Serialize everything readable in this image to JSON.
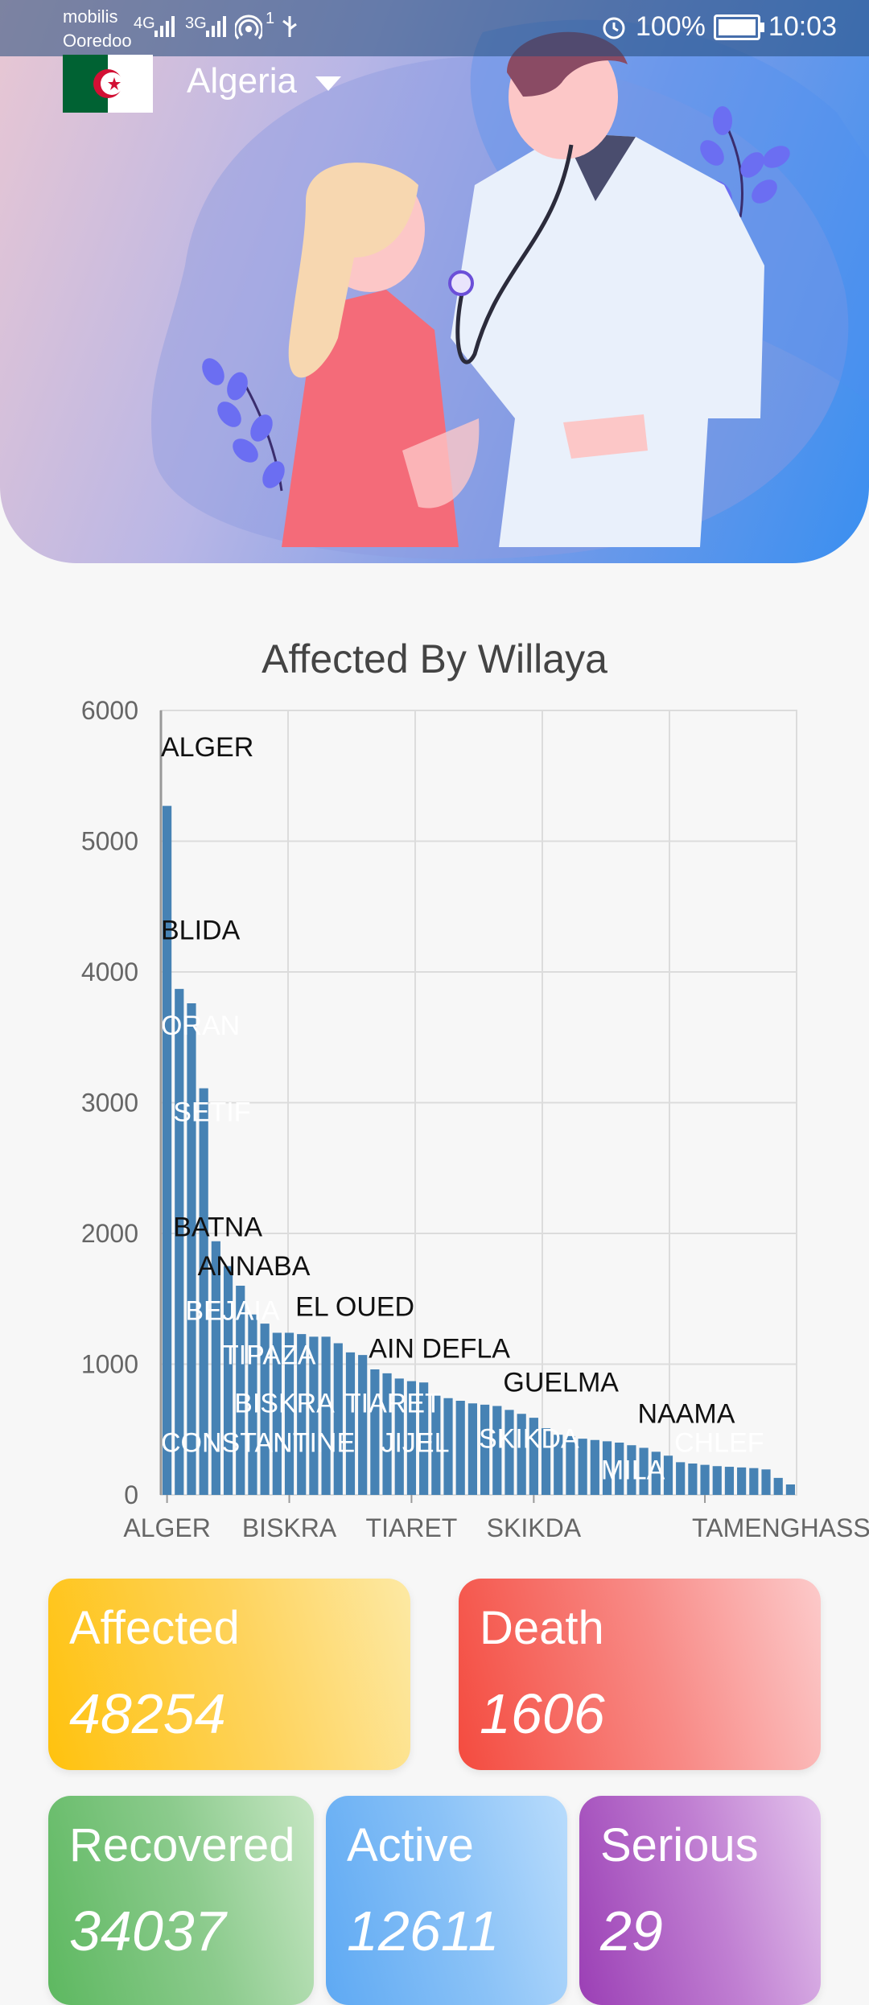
{
  "status_bar": {
    "carrier_1": "mobilis",
    "carrier_2": "Ooredoo",
    "signal_1": "4G",
    "signal_2": "3G",
    "hotspot_count": "1",
    "battery": "100%",
    "time": "10:03"
  },
  "header": {
    "country": "Algeria",
    "flag_colors": [
      "#006233",
      "#ffffff",
      "#d21034"
    ]
  },
  "chart_data": {
    "type": "bar",
    "title": "Affected By Willaya",
    "ylim": [
      0,
      6000
    ],
    "yticks": [
      0,
      1000,
      2000,
      3000,
      4000,
      5000,
      6000
    ],
    "xtick_labels": [
      "ALGER",
      "BISKRA",
      "TIARET",
      "SKIKDA",
      "TAMENGHASSET"
    ],
    "xtick_indices": [
      0,
      10,
      20,
      30,
      44
    ],
    "values": [
      5270,
      3870,
      3760,
      3110,
      1940,
      1750,
      1600,
      1380,
      1310,
      1240,
      1240,
      1230,
      1210,
      1210,
      1160,
      1090,
      1070,
      960,
      930,
      890,
      870,
      860,
      770,
      740,
      720,
      700,
      690,
      680,
      650,
      620,
      590,
      510,
      460,
      450,
      430,
      420,
      410,
      400,
      380,
      360,
      330,
      300,
      250,
      240,
      230,
      220,
      215,
      210,
      205,
      195,
      130,
      80
    ],
    "bar_labels": [
      {
        "index": 0,
        "text": "ALGER",
        "value": 5650,
        "color": "#111111"
      },
      {
        "index": 0,
        "text": "BLIDA",
        "value": 4250,
        "color": "#111111"
      },
      {
        "index": 0,
        "text": "ORAN",
        "value": 3520,
        "color": "#ffffff"
      },
      {
        "index": 1,
        "text": "SETIF",
        "value": 2860,
        "color": "#ffffff"
      },
      {
        "index": 1,
        "text": "BATNA",
        "value": 1980,
        "color": "#111111"
      },
      {
        "index": 3,
        "text": "ANNABA",
        "value": 1680,
        "color": "#111111"
      },
      {
        "index": 2,
        "text": "BEJAIA",
        "value": 1340,
        "color": "#ffffff"
      },
      {
        "index": 11,
        "text": "EL OUED",
        "value": 1370,
        "color": "#111111"
      },
      {
        "index": 5,
        "text": "TIPAZA",
        "value": 1000,
        "color": "#ffffff"
      },
      {
        "index": 17,
        "text": "AIN DEFLA",
        "value": 1050,
        "color": "#111111"
      },
      {
        "index": 6,
        "text": "BISKRA",
        "value": 630,
        "color": "#ffffff"
      },
      {
        "index": 15,
        "text": "TIARET",
        "value": 630,
        "color": "#ffffff"
      },
      {
        "index": 28,
        "text": "GUELMA",
        "value": 790,
        "color": "#111111"
      },
      {
        "index": 0,
        "text": "CONSTANTINE",
        "value": 330,
        "color": "#ffffff"
      },
      {
        "index": 18,
        "text": "JIJEL",
        "value": 330,
        "color": "#ffffff"
      },
      {
        "index": 26,
        "text": "SKIKDA",
        "value": 360,
        "color": "#ffffff"
      },
      {
        "index": 39,
        "text": "NAAMA",
        "value": 550,
        "color": "#111111"
      },
      {
        "index": 42,
        "text": "CHLEF",
        "value": 330,
        "color": "#ffffff"
      },
      {
        "index": 36,
        "text": "MILA",
        "value": 120,
        "color": "#ffffff"
      }
    ],
    "bar_color": "#4682b4",
    "grid": true
  },
  "stats": {
    "affected": {
      "label": "Affected",
      "value": "48254"
    },
    "death": {
      "label": "Death",
      "value": "1606"
    },
    "recovered": {
      "label": "Recovered",
      "value": "34037"
    },
    "active": {
      "label": "Active",
      "value": "12611"
    },
    "serious": {
      "label": "Serious",
      "value": "29"
    }
  }
}
